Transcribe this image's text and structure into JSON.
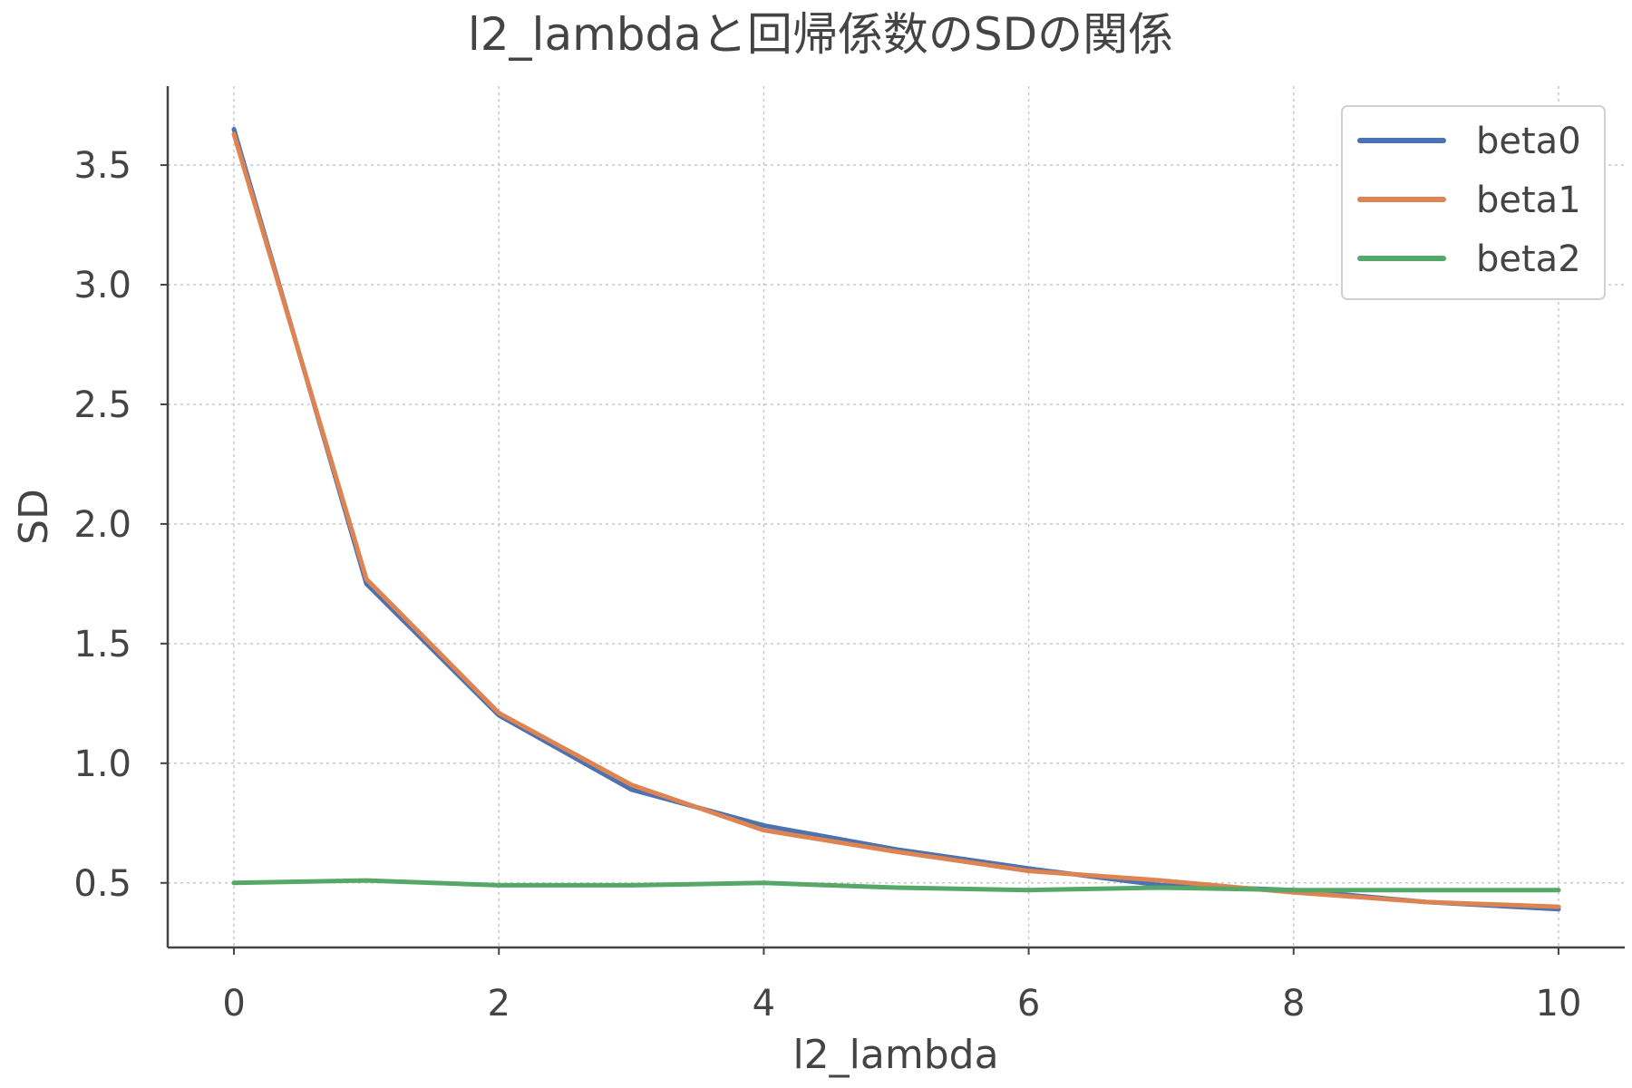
{
  "chart_data": {
    "type": "line",
    "title": "l2_lambdaと回帰係数のSDの関係",
    "xlabel": "l2_lambda",
    "ylabel": "SD",
    "x": [
      0,
      1,
      2,
      3,
      4,
      5,
      6,
      7,
      8,
      9,
      10
    ],
    "xlim": [
      -0.5,
      10.5
    ],
    "ylim": [
      0.23,
      3.83
    ],
    "x_ticks": [
      0,
      2,
      4,
      6,
      8,
      10
    ],
    "x_tick_labels": [
      "0",
      "2",
      "4",
      "6",
      "8",
      "10"
    ],
    "y_ticks": [
      0.5,
      1.0,
      1.5,
      2.0,
      2.5,
      3.0,
      3.5
    ],
    "y_tick_labels": [
      "0.5",
      "1.0",
      "1.5",
      "2.0",
      "2.5",
      "3.0",
      "3.5"
    ],
    "grid": true,
    "legend_position": "top-right",
    "series": [
      {
        "name": "beta0",
        "color": "#4c72b0",
        "values": [
          3.65,
          1.75,
          1.2,
          0.89,
          0.74,
          0.64,
          0.56,
          0.49,
          0.47,
          0.42,
          0.39
        ]
      },
      {
        "name": "beta1",
        "color": "#dd8452",
        "values": [
          3.63,
          1.77,
          1.21,
          0.91,
          0.72,
          0.63,
          0.55,
          0.51,
          0.46,
          0.42,
          0.4
        ]
      },
      {
        "name": "beta2",
        "color": "#55a868",
        "values": [
          0.5,
          0.51,
          0.49,
          0.49,
          0.5,
          0.48,
          0.47,
          0.48,
          0.47,
          0.47,
          0.47
        ]
      }
    ]
  }
}
